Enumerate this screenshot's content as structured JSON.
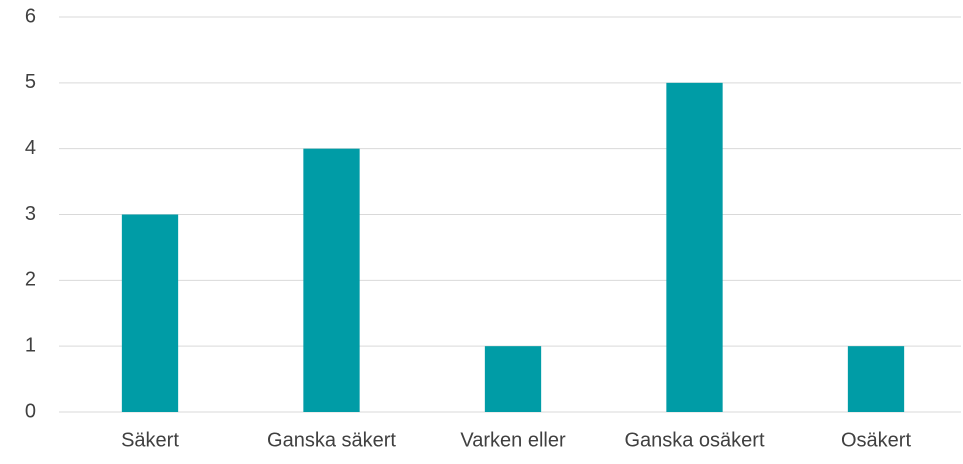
{
  "chart_data": {
    "type": "bar",
    "categories": [
      "Säkert",
      "Ganska säkert",
      "Varken eller",
      "Ganska osäkert",
      "Osäkert"
    ],
    "values": [
      3,
      4,
      1,
      5,
      1
    ],
    "color": "#009ca6",
    "ylim": [
      0,
      6
    ],
    "yticks": [
      0,
      1,
      2,
      3,
      4,
      5,
      6
    ],
    "grid": true
  }
}
